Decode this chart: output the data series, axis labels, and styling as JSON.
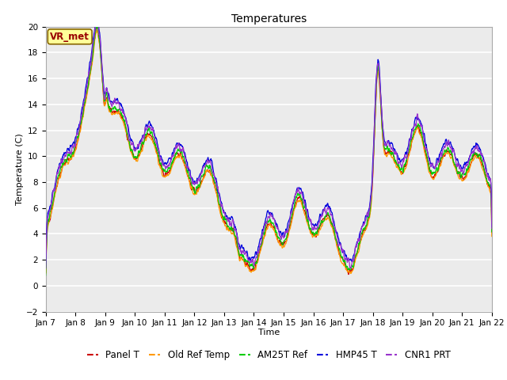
{
  "title": "Temperatures",
  "xlabel": "Time",
  "ylabel": "Temperature (C)",
  "ylim": [
    -2,
    20
  ],
  "yticks": [
    -2,
    0,
    2,
    4,
    6,
    8,
    10,
    12,
    14,
    16,
    18,
    20
  ],
  "xtick_labels": [
    "Jan 7",
    "Jan 8",
    "Jan 9",
    "Jan 10",
    "Jan 11",
    "Jan 12",
    "Jan 13",
    "Jan 14",
    "Jan 15",
    "Jan 16",
    "Jan 17",
    "Jan 18",
    "Jan 19",
    "Jan 20",
    "Jan 21",
    "Jan 22"
  ],
  "series_colors": {
    "Panel T": "#cc0000",
    "Old Ref Temp": "#ff9900",
    "AM25T Ref": "#00cc00",
    "HMP45 T": "#0000dd",
    "CNR1 PRT": "#9933cc"
  },
  "series_names": [
    "Panel T",
    "Old Ref Temp",
    "AM25T Ref",
    "HMP45 T",
    "CNR1 PRT"
  ],
  "annotation": "VR_met",
  "plot_bg_color": "#ebebeb",
  "grid_color": "#ffffff",
  "linewidth": 0.9,
  "title_fontsize": 10,
  "axis_fontsize": 8,
  "tick_fontsize": 7.5,
  "legend_fontsize": 8.5
}
